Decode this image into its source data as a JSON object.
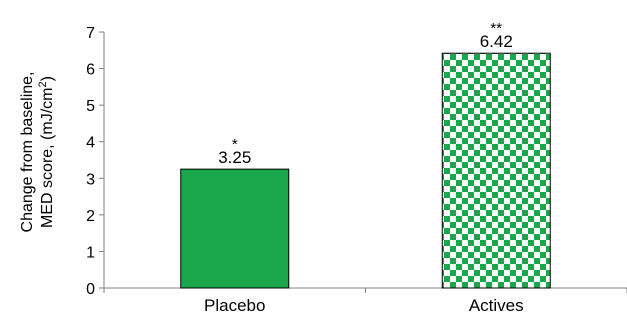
{
  "chart_data": {
    "type": "bar",
    "categories": [
      "Placebo",
      "Actives"
    ],
    "values": [
      3.25,
      6.42
    ],
    "data_labels": [
      "3.25",
      "6.42"
    ],
    "significance": [
      "*",
      "**"
    ],
    "bar_styles": [
      "solid",
      "checkered"
    ],
    "title": "",
    "xlabel": "",
    "ylabel_line1": "Change from baseline,",
    "ylabel_line2_prefix": "MED score, (mJ/cm",
    "ylabel_line2_sup": "2",
    "ylabel_line2_suffix": ")",
    "ylim": [
      0,
      7
    ],
    "yticks": [
      0,
      1,
      2,
      3,
      4,
      5,
      6,
      7
    ],
    "grid": false,
    "legend": "none",
    "colors": {
      "bar_fill": "#1aa64b",
      "bar_stroke": "#000000",
      "checker_light": "#ffffff",
      "axis": "#808080"
    }
  }
}
